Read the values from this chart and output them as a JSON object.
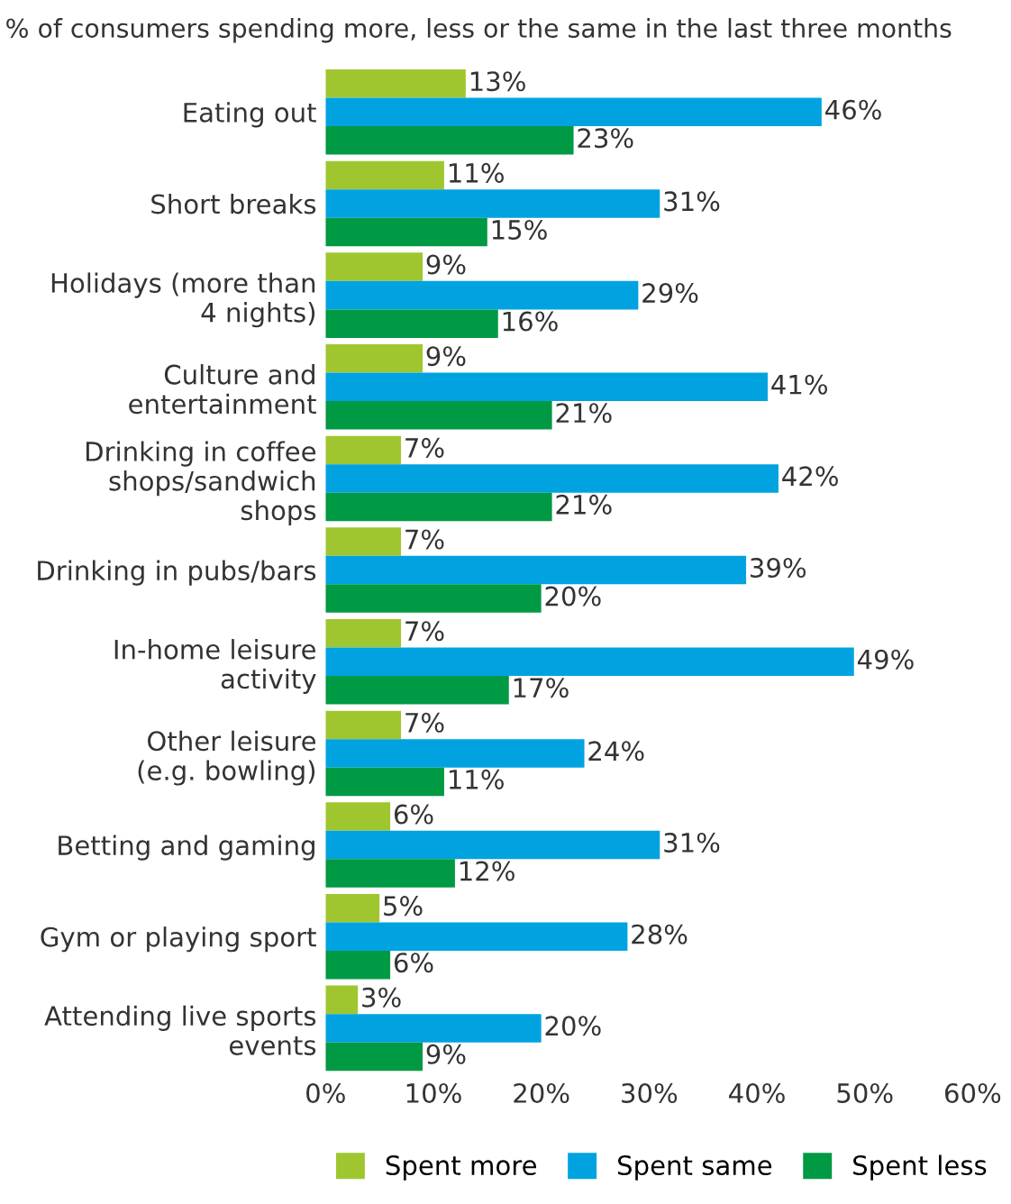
{
  "chart_data": {
    "type": "bar",
    "orientation": "horizontal",
    "title": "% of consumers spending more, less or the same in the last three months",
    "categories": [
      "Eating out",
      "Short breaks",
      "Holidays (more than\n4 nights)",
      "Culture and\nentertainment",
      "Drinking in coffee\nshops/sandwich\nshops",
      "Drinking in pubs/bars",
      "In-home leisure\nactivity",
      "Other leisure\n(e.g. bowling)",
      "Betting and gaming",
      "Gym or playing sport",
      "Attending live sports\nevents"
    ],
    "series": [
      {
        "name": "Spent more",
        "color": "#a0c62f",
        "values": [
          13,
          11,
          9,
          9,
          7,
          7,
          7,
          7,
          6,
          5,
          3
        ],
        "value_labels": [
          "13%",
          "11%",
          "9%",
          "9%",
          "7%",
          "7%",
          "7%",
          "7%",
          "6%",
          "5%",
          "3%"
        ]
      },
      {
        "name": "Spent same",
        "color": "#00a3e0",
        "values": [
          46,
          31,
          29,
          41,
          42,
          39,
          49,
          24,
          31,
          28,
          20
        ],
        "value_labels": [
          "46%",
          "31%",
          "29%",
          "41%",
          "42%",
          "39%",
          "49%",
          "24%",
          "31%",
          "28%",
          "20%"
        ]
      },
      {
        "name": "Spent less",
        "color": "#009a44",
        "values": [
          23,
          15,
          16,
          21,
          21,
          20,
          17,
          11,
          12,
          6,
          9
        ],
        "value_labels": [
          "23%",
          "15%",
          "16%",
          "21%",
          "21%",
          "20%",
          "17%",
          "11%",
          "12%",
          "6%",
          "9%"
        ]
      }
    ],
    "xlim": [
      0,
      60
    ],
    "xticks": [
      {
        "value": 0,
        "label": "0%"
      },
      {
        "value": 10,
        "label": "10%"
      },
      {
        "value": 20,
        "label": "20%"
      },
      {
        "value": 30,
        "label": "30%"
      },
      {
        "value": 40,
        "label": "40%"
      },
      {
        "value": 50,
        "label": "50%"
      },
      {
        "value": 60,
        "label": "60%"
      }
    ],
    "grid": false,
    "legend": "bottom right"
  }
}
